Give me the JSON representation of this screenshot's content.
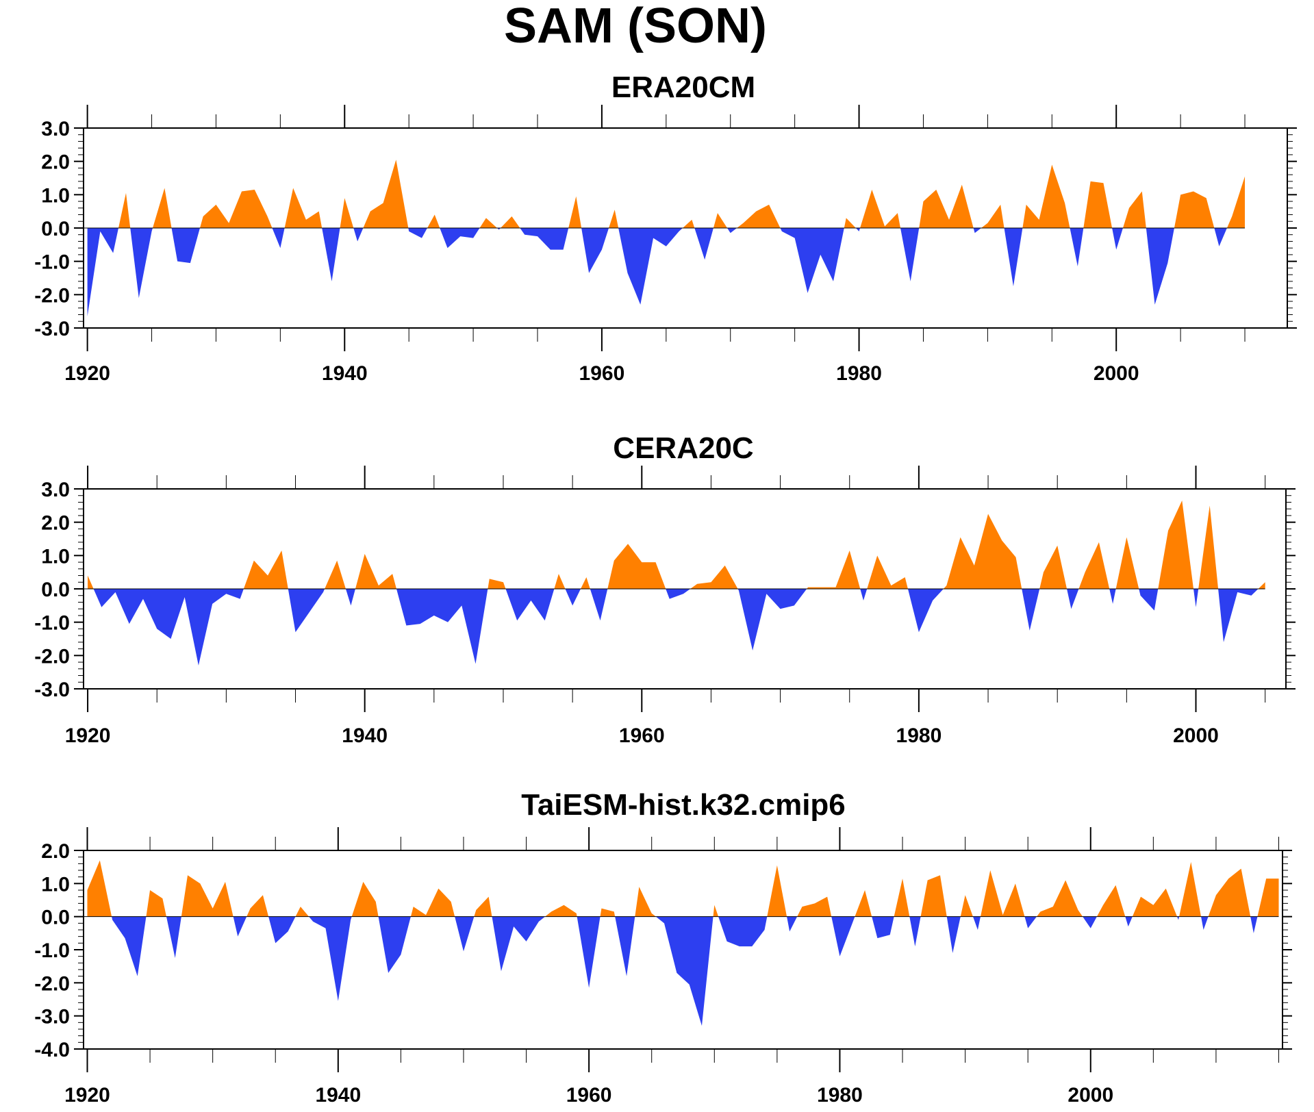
{
  "title": "SAM (SON)",
  "colors": {
    "positive": "#ff8000",
    "negative": "#2d3ff0",
    "axis": "#000000",
    "zero_line": "#000000"
  },
  "chart_data": [
    {
      "type": "area",
      "title": "ERA20CM",
      "xlim": [
        1919.7,
        2013.3
      ],
      "ylim": [
        -3.0,
        3.0
      ],
      "x_ticks": [
        1920,
        1940,
        1960,
        1980,
        2000
      ],
      "x_tick_labels": [
        "1920",
        "1940",
        "1960",
        "1980",
        "2000"
      ],
      "y_ticks": [
        -3.0,
        -2.0,
        -1.0,
        0.0,
        1.0,
        2.0,
        3.0
      ],
      "y_tick_labels": [
        "-3.0",
        "-2.0",
        "-1.0",
        "0.0",
        "1.0",
        "2.0",
        "3.0"
      ],
      "x_start": 1920,
      "values": [
        -2.65,
        -0.1,
        -0.75,
        1.05,
        -2.1,
        -0.1,
        1.2,
        -1.0,
        -1.05,
        0.35,
        0.7,
        0.15,
        1.1,
        1.15,
        0.35,
        -0.6,
        1.2,
        0.25,
        0.5,
        -1.6,
        0.9,
        -0.4,
        0.5,
        0.75,
        2.05,
        -0.1,
        -0.3,
        0.4,
        -0.6,
        -0.25,
        -0.3,
        0.3,
        -0.05,
        0.35,
        -0.2,
        -0.25,
        -0.65,
        -0.65,
        0.95,
        -1.35,
        -0.65,
        0.55,
        -1.35,
        -2.3,
        -0.3,
        -0.55,
        -0.1,
        0.25,
        -0.95,
        0.45,
        -0.15,
        0.15,
        0.5,
        0.7,
        -0.1,
        -0.3,
        -1.95,
        -0.8,
        -1.6,
        0.3,
        -0.1,
        1.15,
        0.05,
        0.45,
        -1.6,
        0.8,
        1.15,
        0.25,
        1.3,
        -0.15,
        0.15,
        0.7,
        -1.75,
        0.7,
        0.25,
        1.9,
        0.75,
        -1.15,
        1.4,
        1.35,
        -0.65,
        0.6,
        1.1,
        -2.3,
        -1.05,
        1.0,
        1.1,
        0.9,
        -0.55,
        0.35,
        1.55
      ]
    },
    {
      "type": "area",
      "title": "CERA20C",
      "xlim": [
        1919.7,
        2006.5
      ],
      "ylim": [
        -3.0,
        3.0
      ],
      "x_ticks": [
        1920,
        1940,
        1960,
        1980,
        2000
      ],
      "x_tick_labels": [
        "1920",
        "1940",
        "1960",
        "1980",
        "2000"
      ],
      "y_ticks": [
        -3.0,
        -2.0,
        -1.0,
        0.0,
        1.0,
        2.0,
        3.0
      ],
      "y_tick_labels": [
        "-3.0",
        "-2.0",
        "-1.0",
        "0.0",
        "1.0",
        "2.0",
        "3.0"
      ],
      "x_start": 1920,
      "values": [
        0.4,
        -0.55,
        -0.1,
        -1.05,
        -0.3,
        -1.2,
        -1.5,
        -0.25,
        -2.3,
        -0.45,
        -0.15,
        -0.3,
        0.85,
        0.4,
        1.15,
        -1.3,
        -0.7,
        -0.1,
        0.85,
        -0.5,
        1.05,
        0.1,
        0.45,
        -1.1,
        -1.05,
        -0.8,
        -1.0,
        -0.5,
        -2.25,
        0.3,
        0.2,
        -0.95,
        -0.35,
        -0.95,
        0.45,
        -0.5,
        0.35,
        -0.95,
        0.85,
        1.35,
        0.8,
        0.8,
        -0.3,
        -0.15,
        0.15,
        0.2,
        0.7,
        -0.05,
        -1.85,
        -0.15,
        -0.6,
        -0.5,
        0.05,
        0.05,
        0.05,
        1.15,
        -0.35,
        1.0,
        0.1,
        0.35,
        -1.3,
        -0.35,
        0.1,
        1.55,
        0.7,
        2.25,
        1.45,
        0.95,
        -1.25,
        0.5,
        1.3,
        -0.6,
        0.5,
        1.4,
        -0.45,
        1.55,
        -0.2,
        -0.65,
        1.75,
        2.65,
        -0.55,
        2.5,
        -1.6,
        -0.1,
        -0.2,
        0.2
      ]
    },
    {
      "type": "area",
      "title": "TaiESM-hist.k32.cmip6",
      "xlim": [
        1919.7,
        2015.3
      ],
      "ylim": [
        -4.0,
        2.0
      ],
      "x_ticks": [
        1920,
        1940,
        1960,
        1980,
        2000
      ],
      "x_tick_labels": [
        "1920",
        "1940",
        "1960",
        "1980",
        "2000"
      ],
      "y_ticks": [
        -4.0,
        -3.0,
        -2.0,
        -1.0,
        0.0,
        1.0,
        2.0
      ],
      "y_tick_labels": [
        "-4.0",
        "-3.0",
        "-2.0",
        "-1.0",
        "0.0",
        "1.0",
        "2.0"
      ],
      "x_start": 1920,
      "values": [
        0.8,
        1.7,
        -0.1,
        -0.65,
        -1.8,
        0.8,
        0.55,
        -1.25,
        1.25,
        1.0,
        0.25,
        1.05,
        -0.6,
        0.25,
        0.65,
        -0.8,
        -0.45,
        0.3,
        -0.15,
        -0.35,
        -2.55,
        -0.1,
        1.05,
        0.45,
        -1.7,
        -1.15,
        0.3,
        0.05,
        0.85,
        0.45,
        -1.05,
        0.2,
        0.6,
        -1.65,
        -0.3,
        -0.75,
        -0.15,
        0.15,
        0.35,
        0.1,
        -2.15,
        0.25,
        0.15,
        -1.8,
        0.9,
        0.1,
        -0.2,
        -1.7,
        -2.05,
        -3.3,
        0.35,
        -0.75,
        -0.9,
        -0.9,
        -0.4,
        1.55,
        -0.45,
        0.3,
        0.4,
        0.6,
        -1.2,
        -0.2,
        0.8,
        -0.65,
        -0.55,
        1.15,
        -0.9,
        1.1,
        1.25,
        -1.1,
        0.65,
        -0.4,
        1.4,
        0.05,
        1.0,
        -0.35,
        0.15,
        0.3,
        1.1,
        0.2,
        -0.35,
        0.35,
        0.95,
        -0.3,
        0.6,
        0.35,
        0.85,
        -0.1,
        1.65,
        -0.4,
        0.65,
        1.15,
        1.45,
        -0.5,
        1.15,
        1.15
      ]
    }
  ]
}
